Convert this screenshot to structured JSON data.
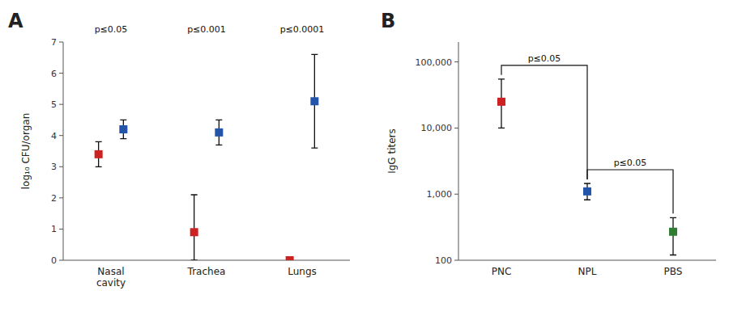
{
  "chart_data": [
    {
      "type": "dot",
      "title": "A",
      "ylabel": "log₁₀ CFU/organ",
      "categories": [
        "Nasal\ncavity",
        "Trachea",
        "Lungs"
      ],
      "series": [
        {
          "color": "#2255AA",
          "values": [
            4.2,
            4.1,
            5.1
          ],
          "err_up": [
            0.3,
            0.4,
            1.5
          ],
          "err_dn": [
            0.3,
            0.4,
            1.5
          ]
        },
        {
          "color": "#CC2222",
          "values": [
            3.4,
            0.9,
            0.0
          ],
          "err_up": [
            0.4,
            1.2,
            0.0
          ],
          "err_dn": [
            0.4,
            0.9,
            0.0
          ]
        }
      ],
      "ylim": [
        0,
        7
      ],
      "yticks": [
        0,
        1,
        2,
        3,
        4,
        5,
        6,
        7
      ],
      "marker": "square",
      "grid": false,
      "annotations": [
        {
          "text": "p≤0.05",
          "category": "Nasal\ncavity"
        },
        {
          "text": "p≤0.001",
          "category": "Trachea"
        },
        {
          "text": "p≤0.0001",
          "category": "Lungs"
        }
      ]
    },
    {
      "type": "dot",
      "title": "B",
      "ylabel": "IgG titers",
      "categories": [
        "PNC",
        "NPL",
        "PBS"
      ],
      "values": [
        25000,
        1100,
        270
      ],
      "err_up": [
        30000,
        350,
        170
      ],
      "err_dn": [
        15000,
        280,
        150
      ],
      "colors": [
        "#CC2222",
        "#2255AA",
        "#2E7D32"
      ],
      "log": "y",
      "ylim": [
        100,
        200000
      ],
      "yticks": [
        100,
        {
          "value": 1000,
          "label": "1,000"
        },
        {
          "value": 10000,
          "label": "10,000"
        },
        {
          "value": 100000,
          "label": "100,000"
        }
      ],
      "marker": "square",
      "grid": false,
      "annotations": [
        {
          "text": "p≤0.05",
          "between": [
            "PNC",
            "NPL"
          ]
        },
        {
          "text": "p≤0.05",
          "between": [
            "NPL",
            "PBS"
          ]
        }
      ]
    }
  ]
}
